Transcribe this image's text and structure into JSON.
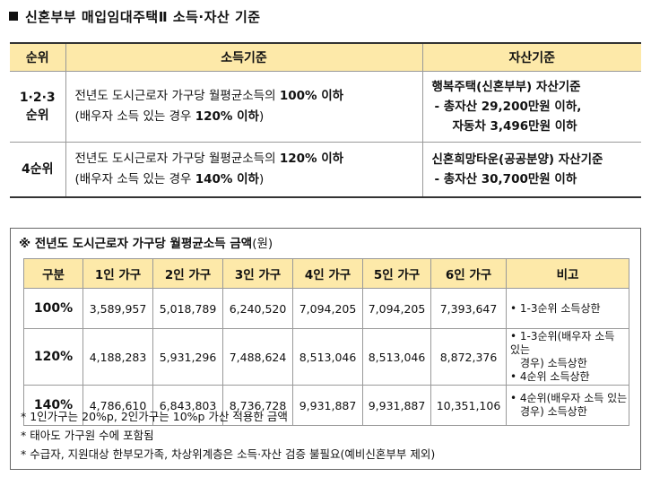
{
  "title": "신혼부부 매입임대주택Ⅱ 소득·자산 기준",
  "criteria_table": {
    "headers": [
      "순위",
      "소득기준",
      "자산기준"
    ],
    "rows": [
      {
        "rank_line1": "1·2·3",
        "rank_line2": "순위",
        "income_line1_pre": "전년도 도시근로자 가구당 월평균소득의 ",
        "income_line1_bold": "100% 이하",
        "income_line2_pre": "(배우자 소득 있는 경우 ",
        "income_line2_bold": "120% 이하",
        "income_line2_post": ")",
        "asset_line1": "행복주택(신혼부부) 자산기준",
        "asset_line2": "- 총자산 29,200만원 이하,",
        "asset_line3": "자동차 3,496만원 이하"
      },
      {
        "rank_line1": "4순위",
        "income_line1_pre": "전년도 도시근로자 가구당 월평균소득의 ",
        "income_line1_bold": "120% 이하",
        "income_line2_pre": "(배우자 소득 있는 경우 ",
        "income_line2_bold": "140% 이하",
        "income_line2_post": ")",
        "asset_line1": "신혼희망타운(공공분양) 자산기준",
        "asset_line2": "- 총자산 30,700만원 이하"
      }
    ]
  },
  "income_box": {
    "note_title": "※ 전년도 도시근로자 가구당 월평균소득 금액",
    "note_unit": "(원)",
    "headers": [
      "구분",
      "1인 가구",
      "2인 가구",
      "3인 가구",
      "4인 가구",
      "5인 가구",
      "6인 가구",
      "비고"
    ],
    "rows": [
      {
        "level": "100%",
        "values": [
          "3,589,957",
          "5,018,789",
          "6,240,520",
          "7,094,205",
          "7,094,205",
          "7,393,647"
        ],
        "remark_lines": [
          "• 1-3순위 소득상한"
        ]
      },
      {
        "level": "120%",
        "values": [
          "4,188,283",
          "5,931,296",
          "7,488,624",
          "8,513,046",
          "8,513,046",
          "8,872,376"
        ],
        "remark_lines": [
          "• 1-3순위(배우자 소득 있는",
          "경우) 소득상한",
          "• 4순위 소득상한"
        ]
      },
      {
        "level": "140%",
        "values": [
          "4,786,610",
          "6,843,803",
          "8,736,728",
          "9,931,887",
          "9,931,887",
          "10,351,106"
        ],
        "remark_lines": [
          "• 4순위(배우자 소득 있는",
          "경우) 소득상한"
        ]
      }
    ],
    "footnotes": [
      "* 1인가구는 20%p, 2인가구는 10%p 가산 적용한 금액",
      "* 태아도 가구원 수에 포함됨",
      "* 수급자, 지원대상 한부모가족, 차상위계층은 소득·자산 검증 불필요(예비신혼부부 제외)"
    ]
  },
  "colors": {
    "header_bg": "#fde9a9"
  }
}
